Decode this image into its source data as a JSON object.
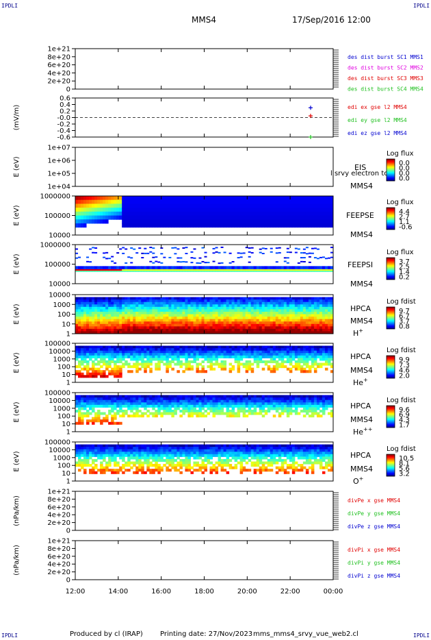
{
  "header": {
    "spacecraft": "MMS4",
    "datetime": "17/Sep/2016 12:00",
    "corner_tl": "IPDLI",
    "corner_tr": "IPDLI",
    "corner_bl": "IPDLI",
    "corner_br": "IPDLI"
  },
  "footer": {
    "produced_by": "Produced by cl (IRAP)",
    "printing_date": "Printing date: 27/Nov/2023",
    "script": "mms_mms4_srvy_vue_web2.cl"
  },
  "x_axis": {
    "ticks": [
      "12:00",
      "14:00",
      "16:00",
      "18:00",
      "20:00",
      "22:00",
      "00:00"
    ]
  },
  "colors": {
    "red": "#e00000",
    "magenta": "#e000e0",
    "green": "#20c020",
    "blue": "#0000d0"
  },
  "chart_data": [
    {
      "id": "des-dist",
      "type": "line",
      "ylabel": "",
      "yticks": [
        "1e+21",
        "8e+20",
        "6e+20",
        "4e+20",
        "2e+20",
        "0"
      ],
      "dashed_zero": true,
      "legend": [
        {
          "text": "des dist burst SC1 MMS1",
          "color": "#0000d0"
        },
        {
          "text": "des dist burst SC2 MMS2",
          "color": "#e000e0"
        },
        {
          "text": "des dist burst SC3 MMS3",
          "color": "#e00000"
        },
        {
          "text": "des dist burst SC4 MMS4",
          "color": "#20c020"
        }
      ],
      "series": []
    },
    {
      "id": "edi-e",
      "type": "scatter",
      "ylabel": "(mV/m)",
      "yticks": [
        "0.6",
        "0.4",
        "0.2",
        "-0.0",
        "-0.2",
        "-0.4",
        "-0.6"
      ],
      "ylim": [
        -0.6,
        0.6
      ],
      "dashed_zero": true,
      "legend": [
        {
          "text": "edi ex gse l2 MMS4",
          "color": "#e00000"
        },
        {
          "text": "edi ey gse l2 MMS4",
          "color": "#20c020"
        },
        {
          "text": "edi ez gse l2 MMS4",
          "color": "#0000d0"
        }
      ],
      "series": [
        {
          "name": "edi ex gse l2 MMS4",
          "color": "#e00000",
          "points": [
            [
              22.95,
              0.05
            ]
          ]
        },
        {
          "name": "edi ey gse l2 MMS4",
          "color": "#20c020",
          "points": [
            [
              22.95,
              -0.6
            ]
          ]
        },
        {
          "name": "edi ez gse l2 MMS4",
          "color": "#0000d0",
          "points": [
            [
              22.95,
              0.3
            ]
          ]
        }
      ]
    },
    {
      "id": "eis",
      "type": "heatmap",
      "ylabel": "E (eV)",
      "yticks": [
        "1e+07",
        "1e+06",
        "1e+05",
        "1e+04"
      ],
      "labels": [
        "EIS",
        "MMS4"
      ],
      "overlay_text": "l srvy electron to",
      "colorbar": {
        "title": "Log flux",
        "ticks": [
          "0.0",
          "0.0",
          "0.0",
          "0.0"
        ]
      }
    },
    {
      "id": "feeps-e",
      "type": "heatmap",
      "ylabel": "E (eV)",
      "yticks": [
        "1000000",
        "100000",
        "10000"
      ],
      "labels": [
        "FEEPSE",
        "MMS4"
      ],
      "colorbar": {
        "title": "Log flux",
        "ticks": [
          "4.4",
          "2.7",
          "1.1",
          "-0.6"
        ]
      }
    },
    {
      "id": "feeps-i",
      "type": "heatmap",
      "ylabel": "E (eV)",
      "yticks": [
        "1000000",
        "100000",
        "10000"
      ],
      "labels": [
        "FEEPSI",
        "MMS4"
      ],
      "colorbar": {
        "title": "Log flux",
        "ticks": [
          "3.7",
          "2.5",
          "1.4",
          "0.2"
        ]
      }
    },
    {
      "id": "hpca-h",
      "type": "heatmap",
      "ylabel": "E (eV)",
      "yticks": [
        "10000",
        "1000",
        "100",
        "10",
        "1"
      ],
      "labels": [
        "HPCA",
        "MMS4"
      ],
      "species": "H",
      "species_sup": "+",
      "colorbar": {
        "title": "Log fdist",
        "ticks": [
          "9.7",
          "6.7",
          "3.7",
          "0.8"
        ]
      }
    },
    {
      "id": "hpca-he",
      "type": "heatmap",
      "ylabel": "E (eV)",
      "yticks": [
        "100000",
        "10000",
        "1000",
        "100",
        "10",
        "1"
      ],
      "labels": [
        "HPCA",
        "MMS4"
      ],
      "species": "He",
      "species_sup": "+",
      "colorbar": {
        "title": "Log fdist",
        "ticks": [
          "9.9",
          "7.3",
          "4.6",
          "2.0"
        ]
      }
    },
    {
      "id": "hpca-he2",
      "type": "heatmap",
      "ylabel": "E (eV)",
      "yticks": [
        "100000",
        "10000",
        "1000",
        "100",
        "10",
        "1"
      ],
      "labels": [
        "HPCA",
        "MMS4"
      ],
      "species": "He",
      "species_sup": "++",
      "colorbar": {
        "title": "Log fdist",
        "ticks": [
          "9.6",
          "6.9",
          "4.3",
          "1.7"
        ]
      }
    },
    {
      "id": "hpca-o",
      "type": "heatmap",
      "ylabel": "E (eV)",
      "yticks": [
        "100000",
        "10000",
        "1000",
        "100",
        "10",
        "1"
      ],
      "labels": [
        "HPCA",
        "MMS4"
      ],
      "species": "O",
      "species_sup": "+",
      "colorbar": {
        "title": "Log fdist",
        "ticks": [
          "10.5",
          "8.1",
          "5.6",
          "3.2"
        ]
      }
    },
    {
      "id": "divpe",
      "type": "line",
      "ylabel": "(nPa/km)",
      "yticks": [
        "1e+21",
        "8e+20",
        "6e+20",
        "4e+20",
        "2e+20",
        "0"
      ],
      "dashed_zero": true,
      "legend": [
        {
          "text": "divPe x gse MMS4",
          "color": "#e00000"
        },
        {
          "text": "divPe y gse MMS4",
          "color": "#20c020"
        },
        {
          "text": "divPe z gse MMS4",
          "color": "#0000d0"
        }
      ],
      "series": []
    },
    {
      "id": "divpi",
      "type": "line",
      "ylabel": "(nPa/km)",
      "yticks": [
        "1e+21",
        "8e+20",
        "6e+20",
        "4e+20",
        "2e+20",
        "0"
      ],
      "dashed_zero": true,
      "legend": [
        {
          "text": "divPi x gse MMS4",
          "color": "#e00000"
        },
        {
          "text": "divPi y gse MMS4",
          "color": "#20c020"
        },
        {
          "text": "divPi z gse MMS4",
          "color": "#0000d0"
        }
      ],
      "series": []
    }
  ]
}
